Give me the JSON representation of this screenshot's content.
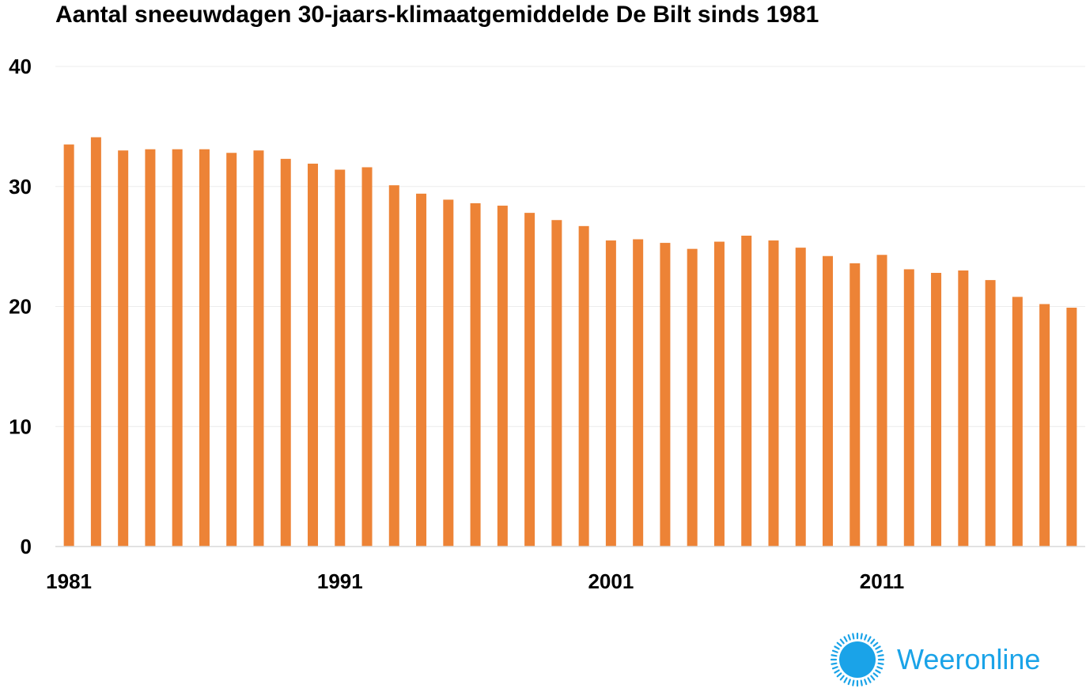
{
  "brand": {
    "name": "Weeronline",
    "color": "#1aa3e8",
    "icon": "sun-icon"
  },
  "chart_data": {
    "type": "bar",
    "title": "Aantal sneeuwdagen 30-jaars-klimaatgemiddelde De Bilt sinds 1981",
    "xlabel": "",
    "ylabel": "",
    "ylim": [
      0,
      40
    ],
    "yticks": [
      0,
      10,
      20,
      30,
      40
    ],
    "xtick_labels": [
      "1981",
      "1991",
      "2001",
      "2011"
    ],
    "grid": true,
    "bar_color": "#ed8336",
    "categories": [
      1981,
      1982,
      1983,
      1984,
      1985,
      1986,
      1987,
      1988,
      1989,
      1990,
      1991,
      1992,
      1993,
      1994,
      1995,
      1996,
      1997,
      1998,
      1999,
      2000,
      2001,
      2002,
      2003,
      2004,
      2005,
      2006,
      2007,
      2008,
      2009,
      2010,
      2011,
      2012,
      2013,
      2014,
      2015,
      2016,
      2017,
      2018
    ],
    "values": [
      33.5,
      34.1,
      33.0,
      33.1,
      33.1,
      33.1,
      32.8,
      33.0,
      32.3,
      31.9,
      31.4,
      31.6,
      30.1,
      29.4,
      28.9,
      28.6,
      28.4,
      27.8,
      27.2,
      26.7,
      25.5,
      25.6,
      25.3,
      24.8,
      25.4,
      25.9,
      25.5,
      24.9,
      24.2,
      23.6,
      24.3,
      23.1,
      22.8,
      23.0,
      22.2,
      20.8,
      20.2,
      19.9
    ]
  }
}
